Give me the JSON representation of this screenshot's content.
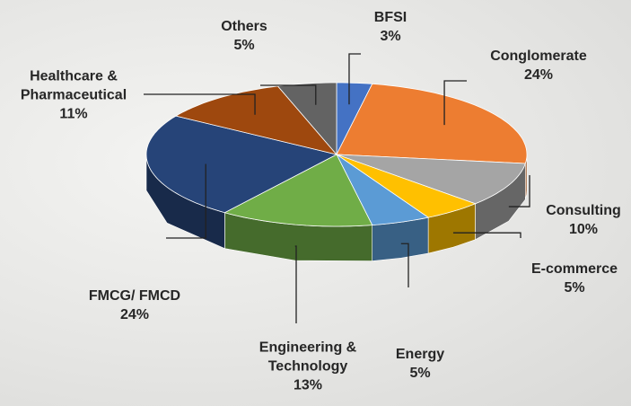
{
  "chart_data": {
    "type": "pie",
    "categories": [
      "BFSI",
      "Conglomerate",
      "Consulting",
      "E-commerce",
      "Energy",
      "Engineering & Technology",
      "FMCG/ FMCD",
      "Healthcare & Pharmaceutical",
      "Others"
    ],
    "values": [
      3,
      24,
      10,
      5,
      5,
      13,
      24,
      11,
      5
    ],
    "value_labels": [
      "3%",
      "24%",
      "10%",
      "5%",
      "5%",
      "13%",
      "24%",
      "11%",
      "5%"
    ],
    "colors": [
      "#4472c4",
      "#ed7d31",
      "#a5a5a5",
      "#ffc000",
      "#5b9bd5",
      "#70ad47",
      "#264478",
      "#9e480e",
      "#636363"
    ]
  }
}
